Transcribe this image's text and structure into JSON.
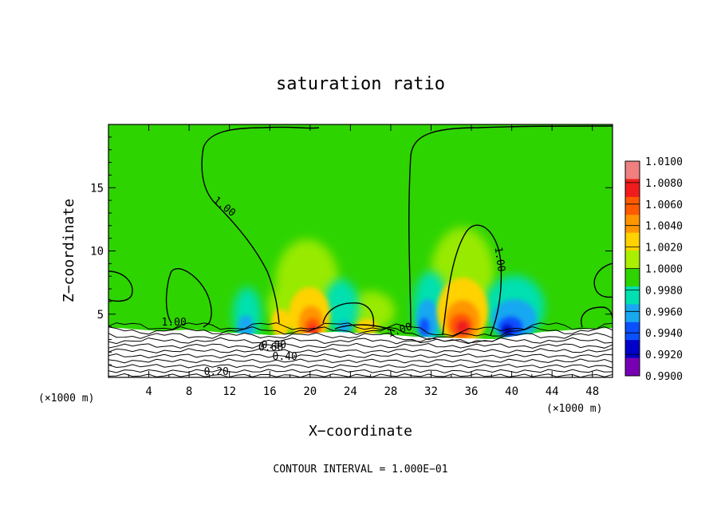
{
  "chart_data": {
    "type": "heatmap",
    "title": "saturation ratio",
    "xlabel": "X−coordinate",
    "ylabel": "Z−coordinate",
    "x_unit_left": "(×1000 m)",
    "x_unit_right": "(×1000 m)",
    "xlim": [
      0,
      50
    ],
    "ylim": [
      0,
      20
    ],
    "x_ticks": [
      "4",
      "8",
      "12",
      "16",
      "20",
      "24",
      "28",
      "32",
      "36",
      "40",
      "44",
      "48"
    ],
    "x_tick_values": [
      4,
      8,
      12,
      16,
      20,
      24,
      28,
      32,
      36,
      40,
      44,
      48
    ],
    "y_ticks": [
      "5",
      "10",
      "15"
    ],
    "y_tick_values": [
      5,
      10,
      15
    ],
    "colorbar": {
      "labels": [
        "1.0100",
        "1.0080",
        "1.0060",
        "1.0040",
        "1.0020",
        "1.0000",
        "0.9980",
        "0.9960",
        "0.9940",
        "0.9920",
        "0.9900"
      ],
      "colors": [
        "#f08080",
        "#f01c1c",
        "#ff5a00",
        "#ff9600",
        "#ffd200",
        "#aaee00",
        "#2ed400",
        "#00e0b0",
        "#18a8f0",
        "#0a50ff",
        "#0000c8",
        "#7800b4"
      ]
    },
    "contour_labels": [
      {
        "text": "1.00",
        "x": 6.5,
        "y": 4.1,
        "rot": 0
      },
      {
        "text": "1.00",
        "x": 11.3,
        "y": 13.3,
        "rot": 38
      },
      {
        "text": "1.00",
        "x": 29,
        "y": 3.5,
        "rot": -18
      },
      {
        "text": "1.00",
        "x": 38.5,
        "y": 9.3,
        "rot": 82
      },
      {
        "text": "0.80",
        "x": 16.4,
        "y": 2.3,
        "rot": 0
      },
      {
        "text": "0.60",
        "x": 16.1,
        "y": 2.1,
        "rot": 0
      },
      {
        "text": "0.40",
        "x": 17.5,
        "y": 1.4,
        "rot": 0
      },
      {
        "text": "0.20",
        "x": 10.7,
        "y": 0.2,
        "rot": 0
      }
    ],
    "footer": "CONTOUR INTERVAL = 1.000E−01",
    "background_value": 1.0
  }
}
